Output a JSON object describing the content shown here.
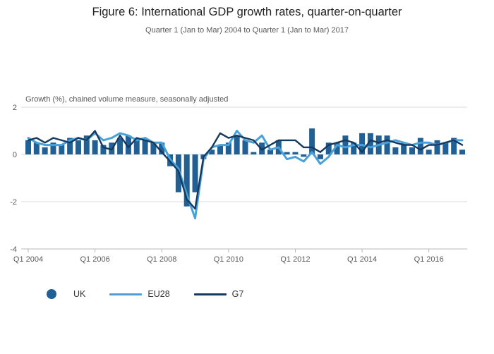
{
  "header": {
    "title": "Figure 6: International GDP growth rates, quarter-on-quarter",
    "subtitle": "Quarter 1 (Jan to Mar) 2004 to Quarter 1 (Jan to Mar) 2017"
  },
  "legend": {
    "items": [
      {
        "label": "UK",
        "marker": "dot"
      },
      {
        "label": "EU28",
        "marker": "line"
      },
      {
        "label": "G7",
        "marker": "line"
      }
    ]
  },
  "chart_data": {
    "type": "bar",
    "title": "Figure 6: International GDP growth rates, quarter-on-quarter",
    "subtitle": "Quarter 1 (Jan to Mar) 2004 to Quarter 1 (Jan to Mar) 2017",
    "axis_note": "Growth (%), chained volume measure, seasonally adjusted",
    "ylim": [
      -4,
      2
    ],
    "y_ticks": [
      2,
      0,
      -2,
      -4
    ],
    "grid": "horizontal",
    "legend_position": "bottom",
    "x_tick_labels": [
      "Q1 2004",
      "Q1 2006",
      "Q1 2008",
      "Q1 2010",
      "Q1 2012",
      "Q1 2014",
      "Q1 2016"
    ],
    "x_tick_indices": [
      0,
      8,
      16,
      24,
      32,
      40,
      48
    ],
    "colors": {
      "grid": "#d8d8d8",
      "axis": "#b8b8b8",
      "text": "#595959"
    },
    "categories": [
      "Q1 2004",
      "Q2 2004",
      "Q3 2004",
      "Q4 2004",
      "Q1 2005",
      "Q2 2005",
      "Q3 2005",
      "Q4 2005",
      "Q1 2006",
      "Q2 2006",
      "Q3 2006",
      "Q4 2006",
      "Q1 2007",
      "Q2 2007",
      "Q3 2007",
      "Q4 2007",
      "Q1 2008",
      "Q2 2008",
      "Q3 2008",
      "Q4 2008",
      "Q1 2009",
      "Q2 2009",
      "Q3 2009",
      "Q4 2009",
      "Q1 2010",
      "Q2 2010",
      "Q3 2010",
      "Q4 2010",
      "Q1 2011",
      "Q2 2011",
      "Q3 2011",
      "Q4 2011",
      "Q1 2012",
      "Q2 2012",
      "Q3 2012",
      "Q4 2012",
      "Q1 2013",
      "Q2 2013",
      "Q3 2013",
      "Q4 2013",
      "Q1 2014",
      "Q2 2014",
      "Q3 2014",
      "Q4 2014",
      "Q1 2015",
      "Q2 2015",
      "Q3 2015",
      "Q4 2015",
      "Q1 2016",
      "Q2 2016",
      "Q3 2016",
      "Q4 2016",
      "Q1 2017"
    ],
    "series": [
      {
        "name": "UK",
        "type": "bar",
        "color": "#206095",
        "values": [
          0.6,
          0.5,
          0.3,
          0.5,
          0.4,
          0.7,
          0.6,
          0.8,
          0.6,
          0.4,
          0.5,
          0.7,
          0.8,
          0.7,
          0.6,
          0.5,
          0.5,
          -0.5,
          -1.6,
          -2.2,
          -1.6,
          -0.2,
          0.2,
          0.4,
          0.5,
          0.8,
          0.6,
          0.1,
          0.5,
          0.2,
          0.6,
          0.1,
          0.1,
          -0.1,
          1.1,
          -0.2,
          0.5,
          0.5,
          0.8,
          0.5,
          0.9,
          0.9,
          0.8,
          0.8,
          0.3,
          0.5,
          0.3,
          0.7,
          0.2,
          0.6,
          0.5,
          0.7,
          0.2
        ]
      },
      {
        "name": "EU28",
        "type": "line",
        "color": "#48a1d9",
        "values": [
          0.7,
          0.5,
          0.4,
          0.4,
          0.4,
          0.6,
          0.7,
          0.6,
          0.9,
          0.6,
          0.7,
          0.9,
          0.8,
          0.6,
          0.7,
          0.5,
          0.5,
          -0.2,
          -0.6,
          -1.7,
          -2.7,
          -0.2,
          0.3,
          0.4,
          0.4,
          1.0,
          0.6,
          0.5,
          0.8,
          0.2,
          0.3,
          -0.2,
          -0.1,
          -0.3,
          0.1,
          -0.4,
          -0.1,
          0.4,
          0.3,
          0.4,
          0.4,
          0.3,
          0.4,
          0.5,
          0.6,
          0.5,
          0.4,
          0.5,
          0.5,
          0.4,
          0.5,
          0.6,
          0.6
        ]
      },
      {
        "name": "G7",
        "type": "line",
        "color": "#163a5f",
        "values": [
          0.6,
          0.7,
          0.5,
          0.7,
          0.6,
          0.5,
          0.7,
          0.6,
          1.0,
          0.3,
          0.2,
          0.8,
          0.3,
          0.7,
          0.6,
          0.5,
          0.1,
          -0.3,
          -0.7,
          -1.9,
          -2.3,
          -0.1,
          0.3,
          0.9,
          0.7,
          0.8,
          0.7,
          0.6,
          0.2,
          0.4,
          0.6,
          0.6,
          0.6,
          0.3,
          0.3,
          0.1,
          0.4,
          0.5,
          0.6,
          0.5,
          0.1,
          0.6,
          0.5,
          0.6,
          0.5,
          0.4,
          0.4,
          0.2,
          0.4,
          0.4,
          0.5,
          0.6,
          0.4
        ]
      }
    ]
  }
}
